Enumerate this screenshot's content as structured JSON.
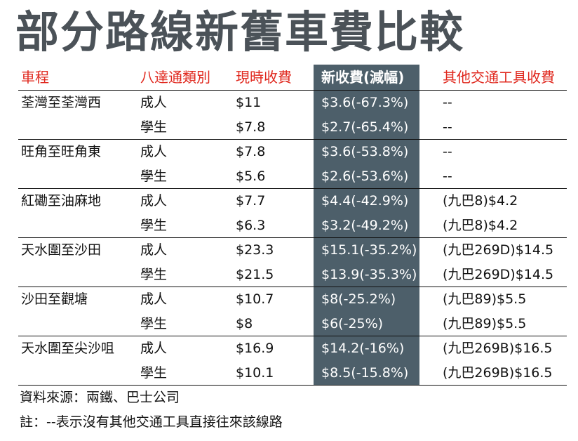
{
  "title": "部分路線新舊車費比較",
  "colors": {
    "title": "#4b5258",
    "header_red": "#e0281e",
    "highlight_column": "#4d5f6a",
    "highlight_text": "#ffffff"
  },
  "headers": {
    "route": "車程",
    "passenger_type": "八達通類別",
    "current_fare": "現時收費",
    "new_fare": "新收費(減幅)",
    "other_transport": "其他交通工具收費"
  },
  "rows": [
    {
      "route": "荃灣至荃灣西",
      "type": "成人",
      "current": "$11",
      "new": "$3.6(-67.3%)",
      "other": "--"
    },
    {
      "route": "",
      "type": "學生",
      "current": "$7.8",
      "new": "$2.7(-65.4%)",
      "other": "--"
    },
    {
      "route": "旺角至旺角東",
      "type": "成人",
      "current": "$7.8",
      "new": "$3.6(-53.8%)",
      "other": "--"
    },
    {
      "route": "",
      "type": "學生",
      "current": "$5.6",
      "new": "$2.6(-53.6%)",
      "other": "--"
    },
    {
      "route": "紅磡至油麻地",
      "type": "成人",
      "current": "$7.7",
      "new": "$4.4(-42.9%)",
      "other": "(九巴8)$4.2"
    },
    {
      "route": "",
      "type": "學生",
      "current": "$6.3",
      "new": "$3.2(-49.2%)",
      "other": "(九巴8)$4.2"
    },
    {
      "route": "天水圍至沙田",
      "type": "成人",
      "current": "$23.3",
      "new": "$15.1(-35.2%)",
      "other": "(九巴269D)$14.5"
    },
    {
      "route": "",
      "type": "學生",
      "current": "$21.5",
      "new": "$13.9(-35.3%)",
      "other": "(九巴269D)$14.5"
    },
    {
      "route": "沙田至觀塘",
      "type": "成人",
      "current": "$10.7",
      "new": "$8(-25.2%)",
      "other": "(九巴89)$5.5"
    },
    {
      "route": "",
      "type": "學生",
      "current": "$8",
      "new": "$6(-25%)",
      "other": "(九巴89)$5.5"
    },
    {
      "route": "天水圍至尖沙咀",
      "type": "成人",
      "current": "$16.9",
      "new": "$14.2(-16%)",
      "other": "(九巴269B)$16.5"
    },
    {
      "route": "",
      "type": "學生",
      "current": "$10.1",
      "new": "$8.5(-15.8%)",
      "other": "(九巴269B)$16.5"
    }
  ],
  "footer": {
    "source": "資料來源：兩鐵、巴士公司",
    "note": "註：--表示沒有其他交通工具直接往來該線路"
  }
}
